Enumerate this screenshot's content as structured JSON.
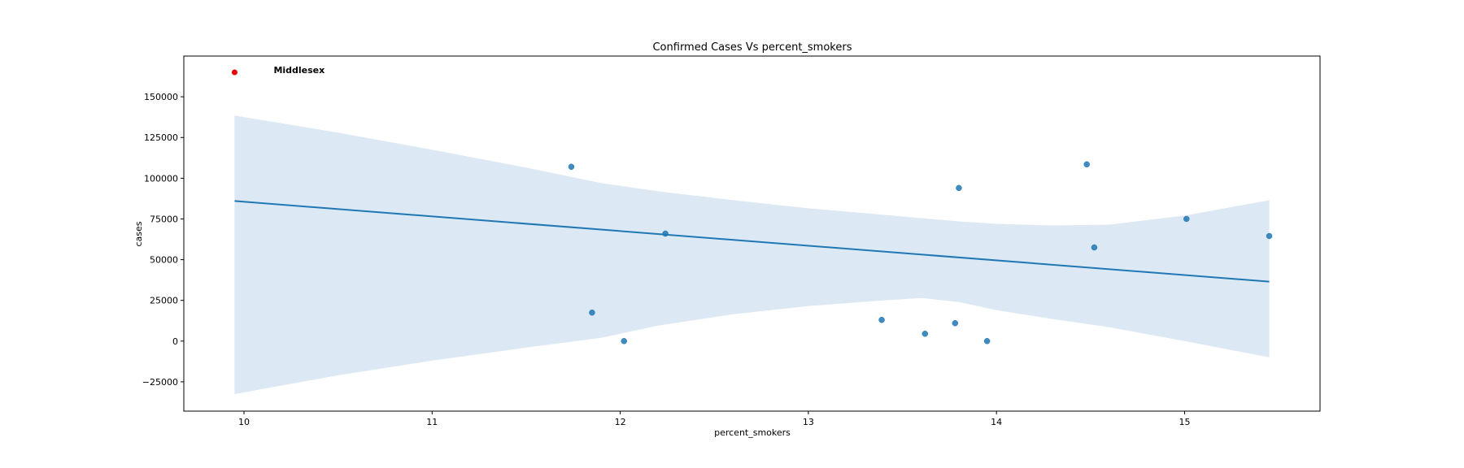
{
  "chart_data": {
    "type": "scatter",
    "title": "Confirmed Cases Vs percent_smokers",
    "xlabel": "percent_smokers",
    "ylabel": "cases",
    "xlim": [
      9.68,
      15.72
    ],
    "ylim": [
      -43000,
      175000
    ],
    "x_ticks": [
      10,
      11,
      12,
      13,
      14,
      15
    ],
    "x_tick_labels": [
      "10",
      "11",
      "12",
      "13",
      "14",
      "15"
    ],
    "y_ticks": [
      -25000,
      0,
      25000,
      50000,
      75000,
      100000,
      125000,
      150000
    ],
    "y_tick_labels": [
      "−25000",
      "0",
      "25000",
      "50000",
      "75000",
      "100000",
      "125000",
      "150000"
    ],
    "grid": false,
    "colors": {
      "points": "#1f77b4",
      "regression_line": "#1f77b4",
      "confidence_band": "#dce8f3",
      "highlight": "#e60000"
    },
    "series": [
      {
        "points": [
          {
            "x": 11.74,
            "y": 107000
          },
          {
            "x": 11.85,
            "y": 17500
          },
          {
            "x": 12.02,
            "y": 0
          },
          {
            "x": 12.24,
            "y": 66000
          },
          {
            "x": 13.39,
            "y": 13000
          },
          {
            "x": 13.62,
            "y": 4500
          },
          {
            "x": 13.78,
            "y": 11000
          },
          {
            "x": 13.8,
            "y": 94000
          },
          {
            "x": 13.95,
            "y": 0
          },
          {
            "x": 14.48,
            "y": 108500
          },
          {
            "x": 14.52,
            "y": 57500
          },
          {
            "x": 15.01,
            "y": 75000
          },
          {
            "x": 15.45,
            "y": 64500
          }
        ]
      }
    ],
    "regression": {
      "x": [
        9.95,
        15.45
      ],
      "y": [
        86000,
        36500
      ]
    },
    "confidence_band": {
      "x": [
        9.95,
        10.5,
        11.0,
        11.5,
        11.9,
        12.2,
        12.6,
        13.0,
        13.4,
        13.6,
        13.8,
        14.0,
        14.3,
        14.6,
        15.0,
        15.45
      ],
      "upper": [
        138500,
        128000,
        117500,
        106500,
        97000,
        92000,
        86500,
        81500,
        77500,
        75500,
        73500,
        72000,
        71000,
        71500,
        77000,
        86500
      ],
      "lower": [
        -32500,
        -21000,
        -12000,
        -4000,
        2000,
        9500,
        16500,
        21500,
        25000,
        26500,
        24000,
        19000,
        13500,
        8500,
        0,
        -10000
      ]
    },
    "highlight": {
      "label": "Middlesex",
      "x": 9.95,
      "y": 165000
    }
  }
}
